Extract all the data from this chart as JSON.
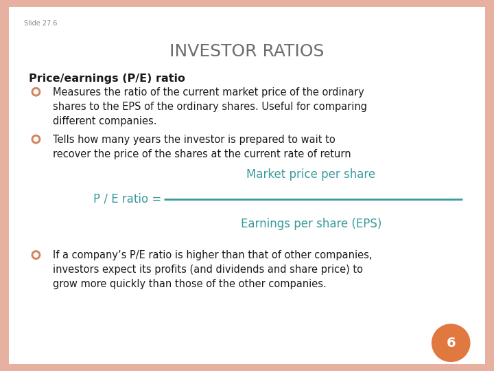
{
  "slide_label": "Slide 27.6",
  "title": "INVESTOR RATIOS",
  "title_color": "#6d6d6d",
  "title_fontsize": 18,
  "section_header": "Price/earnings (P/E) ratio",
  "section_header_color": "#1a1a1a",
  "section_header_fontsize": 11.5,
  "bullet_color": "#d4845a",
  "bullet_text_color": "#1a1a1a",
  "bullet_fontsize": 10.5,
  "bullets": [
    "Measures the ratio of the current market price of the ordinary\nshares to the EPS of the ordinary shares. Useful for comparing\ndifferent companies.",
    "Tells how many years the investor is prepared to wait to\nrecover the price of the shares at the current rate of return"
  ],
  "bullet3": "If a company’s P/E ratio is higher than that of other companies,\ninvestors expect its profits (and dividends and share price) to\ngrow more quickly than those of the other companies.",
  "formula_left": "P / E ratio =",
  "formula_numerator": "Market price per share",
  "formula_denominator": "Earnings per share (EPS)",
  "formula_color": "#3a9a9a",
  "formula_fontsize": 12,
  "page_number": "6",
  "page_circle_color": "#e07840",
  "page_number_color": "#ffffff",
  "background_color": "#ffffff",
  "border_color": "#e8b0a0",
  "slide_label_color": "#888888",
  "slide_label_fontsize": 7
}
